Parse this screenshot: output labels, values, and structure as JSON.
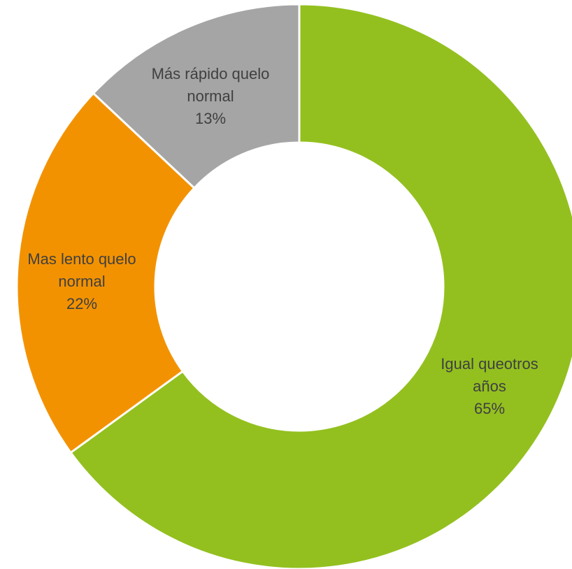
{
  "chart_data": {
    "type": "pie",
    "variant": "donut",
    "title": "",
    "legend": "none",
    "slices": [
      {
        "label": "Igual que otros años",
        "label_lines": [
          "Igual queotros",
          "años"
        ],
        "value": 65,
        "percent_label": "65%",
        "color": "#93c01f"
      },
      {
        "label": "Mas lento que lo normal",
        "label_lines": [
          "Mas lento quelo",
          "normal"
        ],
        "value": 22,
        "percent_label": "22%",
        "color": "#f39200"
      },
      {
        "label": "Más rápido que lo normal",
        "label_lines": [
          "Más rápido quelo",
          "normal"
        ],
        "value": 13,
        "percent_label": "13%",
        "color": "#a5a5a5"
      }
    ]
  }
}
